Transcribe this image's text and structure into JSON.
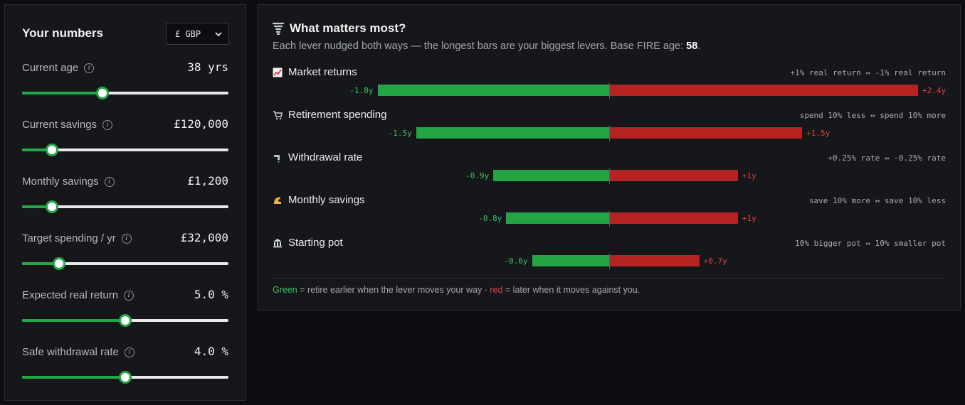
{
  "sidebar": {
    "title": "Your numbers",
    "currency": "£ GBP",
    "fields": [
      {
        "label": "Current age",
        "value": "38 yrs",
        "level": 0.39
      },
      {
        "label": "Current savings",
        "value": "£120,000",
        "level": 0.145
      },
      {
        "label": "Monthly savings",
        "value": "£1,200",
        "level": 0.145
      },
      {
        "label": "Target spending / yr",
        "value": "£32,000",
        "level": 0.18
      },
      {
        "label": "Expected real return",
        "value": "5.0 %",
        "level": 0.5
      },
      {
        "label": "Safe withdrawal rate",
        "value": "4.0 %",
        "level": 0.5
      }
    ]
  },
  "main": {
    "title": "What matters most?",
    "subtitle_prefix": "Each lever nudged both ways — the longest bars are your biggest levers. Base FIRE age: ",
    "base_age": "58",
    "subtitle_suffix": ".",
    "levers": [
      {
        "name": "Market returns",
        "desc": "+1% real return ↔ -1% real return",
        "neg": -1.8,
        "pos": 2.4,
        "neg_label": "-1.8y",
        "pos_label": "+2.4y",
        "icon": "chart-up-icon"
      },
      {
        "name": "Retirement spending",
        "desc": "spend 10% less ↔ spend 10% more",
        "neg": -1.5,
        "pos": 1.5,
        "neg_label": "-1.5y",
        "pos_label": "+1.5y",
        "icon": "cart-icon"
      },
      {
        "name": "Withdrawal rate",
        "desc": "+0.25% rate ↔ -0.25% rate",
        "neg": -0.9,
        "pos": 1.0,
        "neg_label": "-0.9y",
        "pos_label": "+1y",
        "icon": "faucet-icon"
      },
      {
        "name": "Monthly savings",
        "desc": "save 10% more ↔ save 10% less",
        "neg": -0.8,
        "pos": 1.0,
        "neg_label": "-0.8y",
        "pos_label": "+1y",
        "icon": "flexed-arm-icon"
      },
      {
        "name": "Starting pot",
        "desc": "10% bigger pot ↔ 10% smaller pot",
        "neg": -0.6,
        "pos": 0.7,
        "neg_label": "-0.6y",
        "pos_label": "+0.7y",
        "icon": "bank-icon"
      }
    ],
    "legend": {
      "green_word": "Green",
      "green_text": " = retire earlier when the lever moves your way · ",
      "red_word": "red",
      "red_text": " = later when it moves against you."
    }
  },
  "chart_data": {
    "type": "bar",
    "title": "What matters most?",
    "categories": [
      "Market returns",
      "Retirement spending",
      "Withdrawal rate",
      "Monthly savings",
      "Starting pot"
    ],
    "series": [
      {
        "name": "Green",
        "values": [
          -1.8,
          -1.5,
          -0.9,
          -0.8,
          -0.6
        ]
      },
      {
        "name": "red",
        "values": [
          2.4,
          1.5,
          1.0,
          1.0,
          0.7
        ]
      }
    ],
    "xlim": [
      -2.4,
      2.4
    ],
    "grid": false
  },
  "colors": {
    "accent_green": "#23a445",
    "accent_red": "#b52323",
    "background": "#0d0e11",
    "panel": "#16171b"
  }
}
